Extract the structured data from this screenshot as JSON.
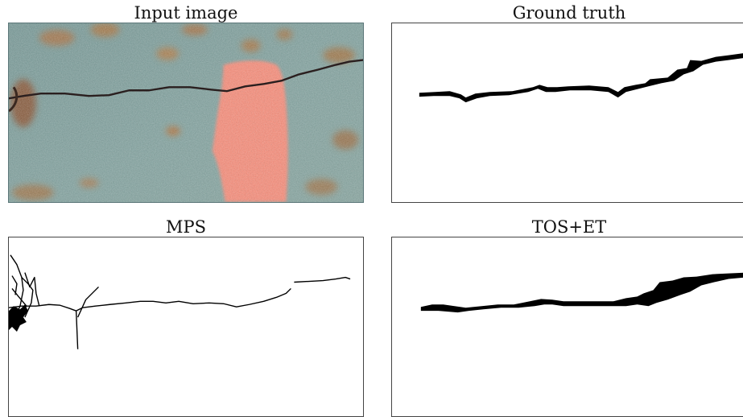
{
  "figure": {
    "panels": [
      {
        "id": "input",
        "title": "Input image"
      },
      {
        "id": "ground_truth",
        "title": "Ground truth"
      },
      {
        "id": "mps",
        "title": "MPS"
      },
      {
        "id": "tos_et",
        "title": "TOS+ET"
      }
    ],
    "colors": {
      "background_surface": "#7f9f9f",
      "rust": "#b3753f",
      "paint_mark": "#ef8f7e",
      "crack": "#2a1f1f",
      "mask": "#000000"
    }
  }
}
